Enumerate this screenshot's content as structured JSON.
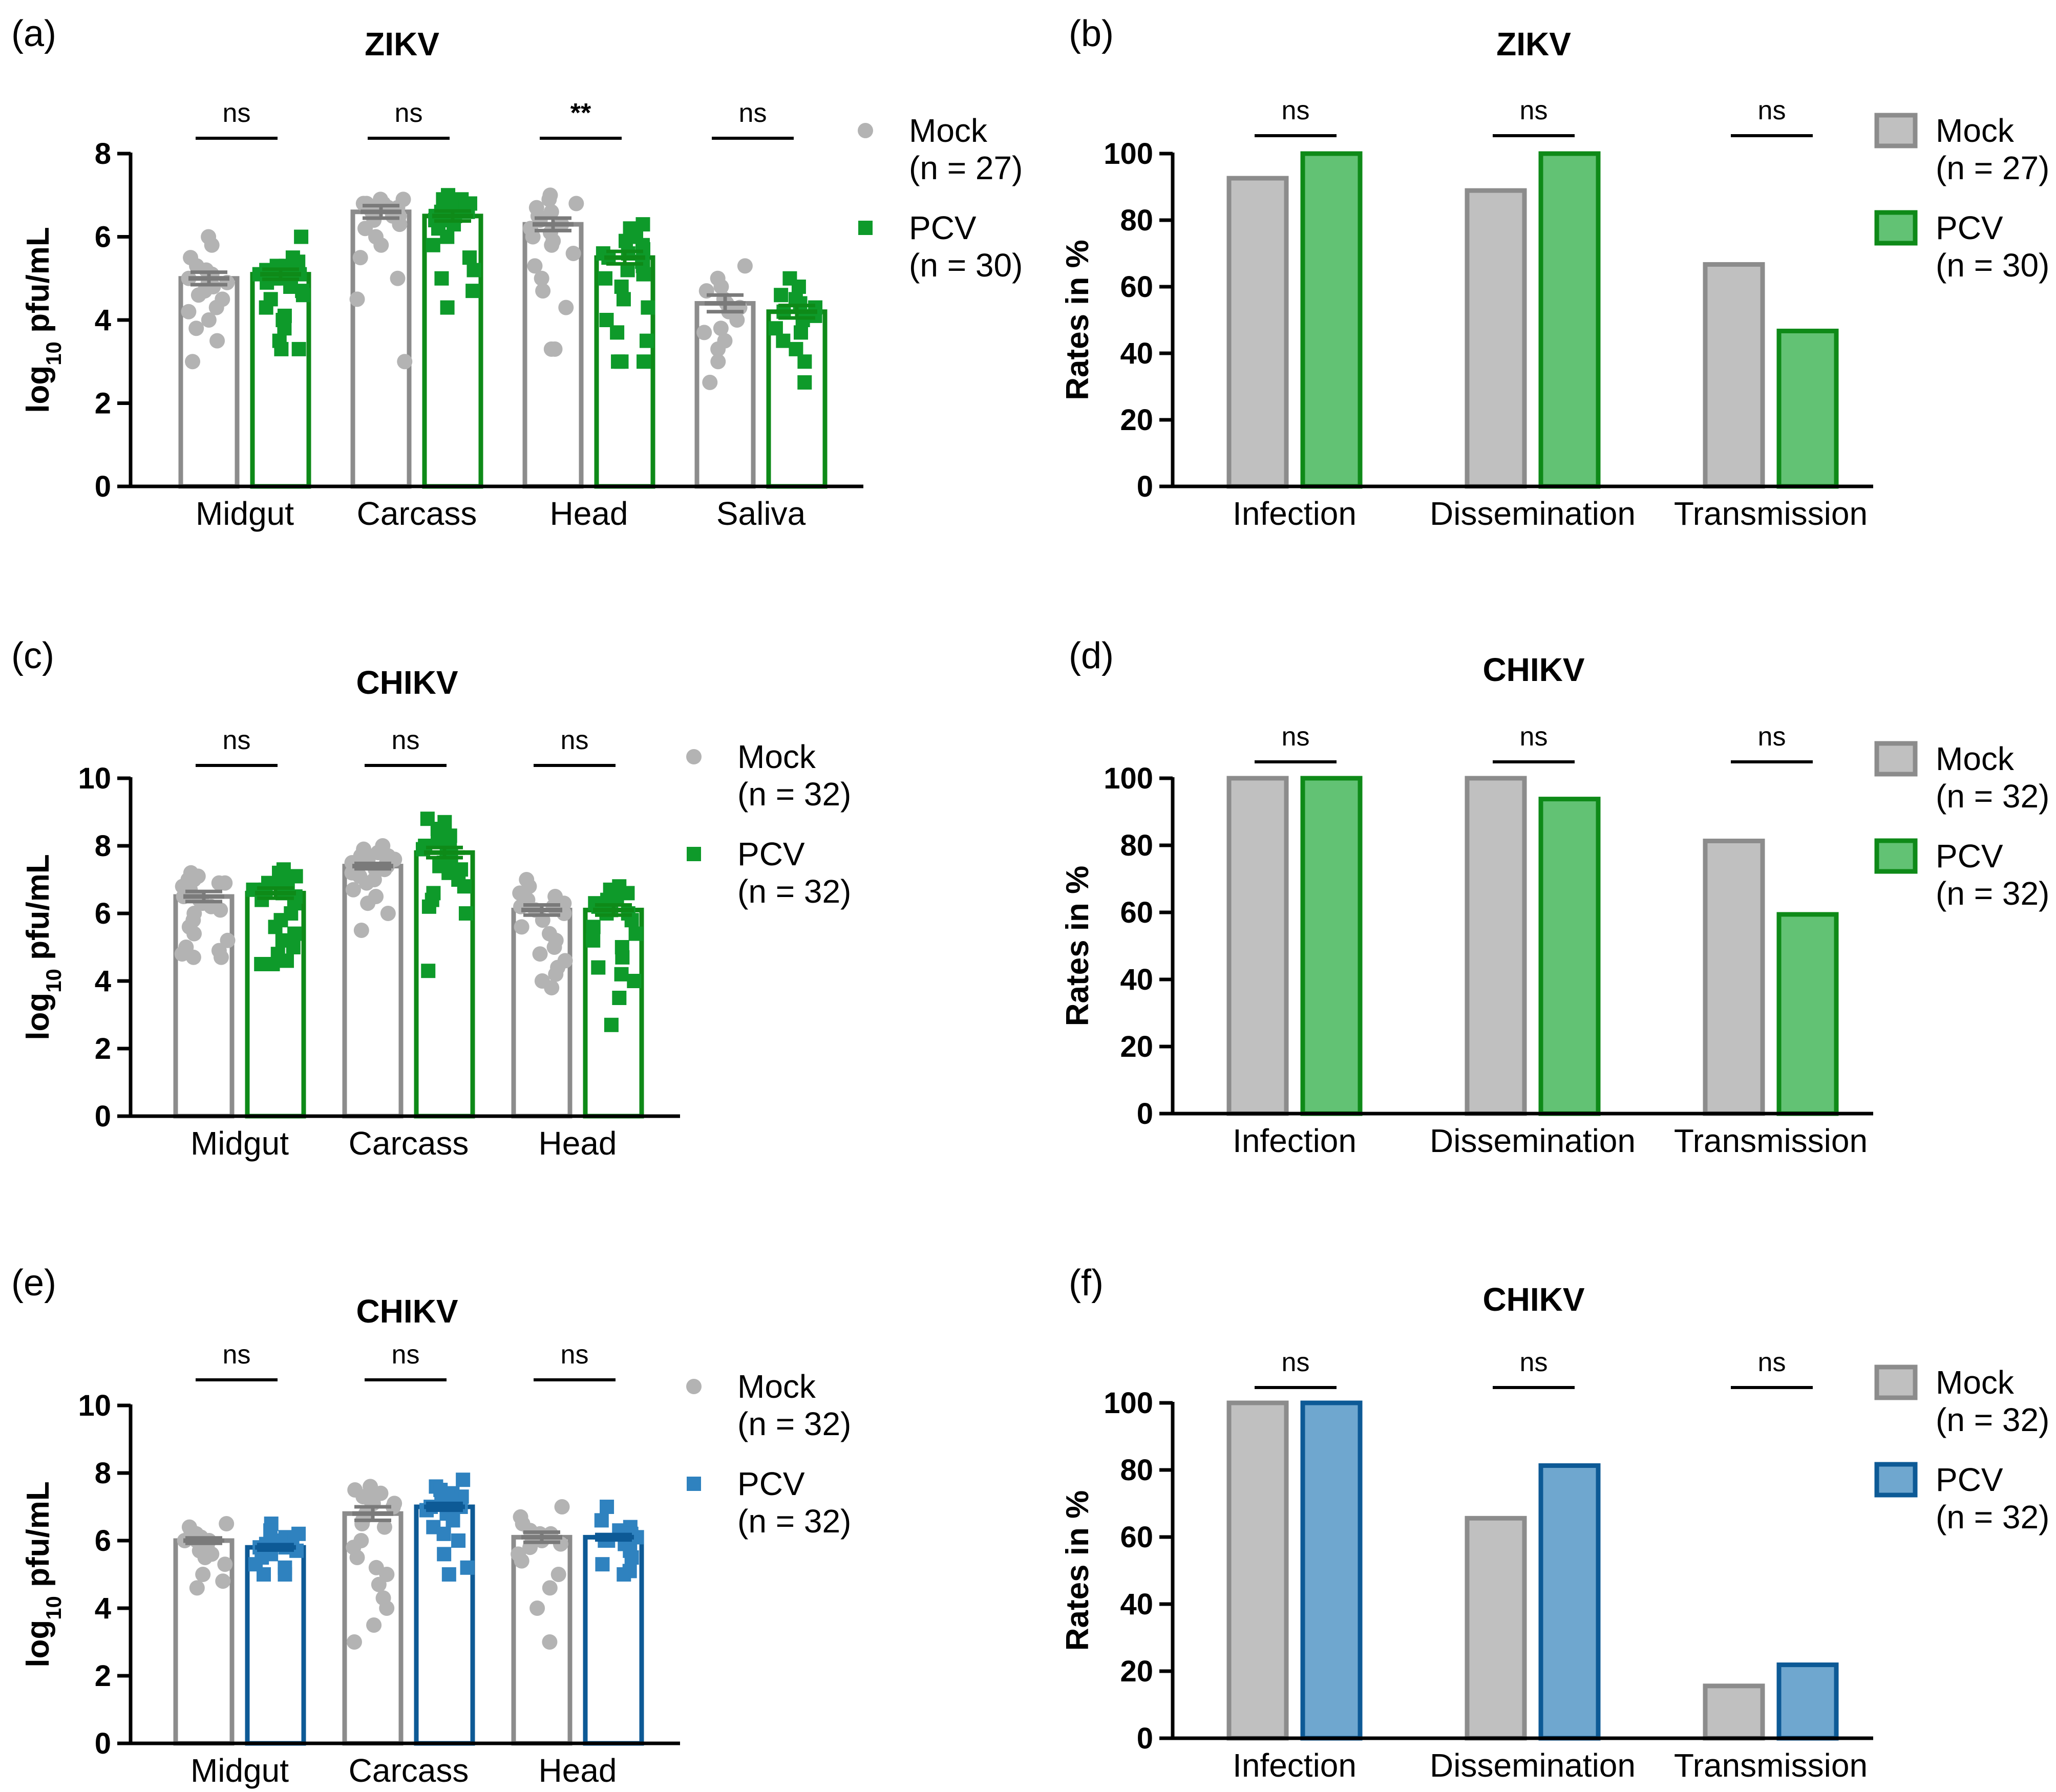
{
  "colors": {
    "mock_edge": "#8c8c8c",
    "mock_fill": "#c0c0c0",
    "mock_dot": "#b3b3b3",
    "green_edge": "#0e8a18",
    "green_fill": "#62c274",
    "green_dot": "#0e9a2a",
    "blue_edge": "#0d5a96",
    "blue_fill": "#6fa7cf",
    "blue_dot": "#2f82bf"
  },
  "chart_data": [
    {
      "id": "a",
      "type": "bar",
      "panel_label": "(a)",
      "title": "ZIKV",
      "ylabel": "log10 pfu/mL",
      "ylim": [
        0,
        8
      ],
      "yticks": [
        0,
        2,
        4,
        6,
        8
      ],
      "categories": [
        "Midgut",
        "Carcass",
        "Head",
        "Saliva"
      ],
      "significance": [
        "ns",
        "ns",
        "**",
        "ns"
      ],
      "series": [
        {
          "name": "Mock",
          "n_label": "(n = 27)",
          "values": [
            5.0,
            6.6,
            6.3,
            4.4
          ],
          "sem": [
            0.15,
            0.15,
            0.15,
            0.2
          ],
          "points": [
            [
              6.0,
              5.8,
              5.5,
              5.3,
              5.2,
              5.0,
              5.0,
              4.9,
              4.8,
              4.7,
              4.6,
              4.5,
              4.3,
              4.2,
              4.0,
              3.8,
              3.5,
              3.0,
              5.1,
              4.9
            ],
            [
              6.9,
              6.9,
              6.8,
              6.8,
              6.7,
              6.7,
              6.7,
              6.6,
              6.6,
              6.5,
              6.5,
              6.4,
              6.3,
              6.2,
              6.0,
              5.8,
              5.5,
              5.0,
              4.5,
              3.0,
              6.8,
              6.6
            ],
            [
              7.0,
              6.9,
              6.8,
              6.7,
              6.6,
              6.5,
              6.4,
              6.3,
              6.2,
              6.0,
              5.8,
              5.6,
              5.3,
              5.0,
              4.7,
              4.3,
              3.3,
              3.3,
              6.1,
              5.9
            ],
            [
              5.3,
              5.0,
              4.8,
              4.7,
              4.5,
              4.4,
              4.3,
              4.2,
              4.0,
              3.8,
              3.7,
              3.5,
              3.3,
              3.0,
              2.5
            ]
          ]
        },
        {
          "name": "PCV",
          "n_label": "(n = 30)",
          "values": [
            5.1,
            6.5,
            5.5,
            4.2
          ],
          "sem": [
            0.12,
            0.12,
            0.15,
            0.15
          ],
          "points": [
            [
              6.0,
              5.5,
              5.4,
              5.3,
              5.2,
              5.2,
              5.1,
              5.0,
              5.0,
              4.9,
              4.8,
              4.7,
              4.6,
              4.5,
              4.3,
              4.1,
              4.0,
              3.8,
              3.5,
              3.3,
              3.3,
              5.1,
              4.9,
              5.3
            ],
            [
              7.0,
              6.9,
              6.9,
              6.8,
              6.8,
              6.7,
              6.7,
              6.6,
              6.5,
              6.5,
              6.4,
              6.3,
              6.2,
              6.0,
              5.8,
              5.5,
              5.2,
              5.0,
              4.7,
              4.3,
              6.8,
              6.6,
              6.4
            ],
            [
              6.3,
              6.2,
              6.0,
              5.9,
              5.8,
              5.7,
              5.6,
              5.5,
              5.4,
              5.3,
              5.1,
              5.0,
              4.8,
              4.5,
              4.3,
              4.0,
              3.7,
              3.5,
              3.0,
              3.0,
              3.0,
              5.6,
              5.2
            ],
            [
              5.0,
              4.8,
              4.6,
              4.5,
              4.3,
              4.2,
              4.0,
              3.8,
              3.7,
              3.5,
              3.3,
              3.0,
              2.5,
              4.4,
              4.1
            ]
          ]
        }
      ]
    },
    {
      "id": "b",
      "type": "bar",
      "panel_label": "(b)",
      "title": "ZIKV",
      "ylabel": "Rates in %",
      "ylim": [
        0,
        100
      ],
      "yticks": [
        0,
        20,
        40,
        60,
        80,
        100
      ],
      "categories": [
        "Infection",
        "Dissemination",
        "Transmission"
      ],
      "significance": [
        "ns",
        "ns",
        "ns"
      ],
      "series": [
        {
          "name": "Mock",
          "n_label": "(n = 27)",
          "values": [
            92.6,
            88.9,
            66.7
          ]
        },
        {
          "name": "PCV",
          "n_label": "(n = 30)",
          "values": [
            100,
            100,
            46.7
          ]
        }
      ]
    },
    {
      "id": "c",
      "type": "bar",
      "panel_label": "(c)",
      "title": "CHIKV",
      "ylabel": "log10 pfu/mL",
      "ylim": [
        0,
        10
      ],
      "yticks": [
        0,
        2,
        4,
        6,
        8,
        10
      ],
      "categories": [
        "Midgut",
        "Carcass",
        "Head"
      ],
      "significance": [
        "ns",
        "ns",
        "ns"
      ],
      "series": [
        {
          "name": "Mock",
          "n_label": "(n = 32)",
          "values": [
            6.5,
            7.4,
            6.1
          ],
          "sem": [
            0.15,
            0.08,
            0.15
          ],
          "points": [
            [
              7.2,
              7.1,
              7.0,
              7.0,
              6.9,
              6.8,
              6.7,
              6.6,
              6.5,
              6.4,
              6.3,
              6.2,
              6.0,
              5.8,
              5.6,
              5.4,
              5.2,
              5.0,
              4.9,
              4.8,
              4.7,
              4.7,
              6.1,
              6.9
            ],
            [
              8.0,
              7.9,
              7.8,
              7.7,
              7.6,
              7.6,
              7.5,
              7.5,
              7.4,
              7.3,
              7.2,
              7.1,
              7.0,
              6.9,
              6.7,
              6.5,
              6.3,
              6.0,
              5.5,
              7.3,
              7.7
            ],
            [
              7.0,
              6.8,
              6.6,
              6.4,
              6.3,
              6.2,
              6.1,
              6.0,
              5.8,
              5.6,
              5.4,
              5.2,
              5.0,
              4.8,
              4.6,
              4.4,
              4.2,
              4.0,
              3.8,
              6.2,
              6.5
            ]
          ]
        },
        {
          "name": "PCV",
          "n_label": "(n = 32)",
          "values": [
            6.6,
            7.8,
            6.1
          ],
          "sem": [
            0.15,
            0.15,
            0.15
          ],
          "points": [
            [
              7.3,
              7.2,
              7.1,
              7.0,
              6.9,
              6.8,
              6.7,
              6.6,
              6.5,
              6.4,
              6.3,
              6.0,
              5.8,
              5.6,
              5.4,
              5.2,
              5.0,
              4.8,
              4.6,
              4.5,
              4.5,
              6.7,
              7.0
            ],
            [
              8.8,
              8.7,
              8.5,
              8.3,
              8.2,
              8.0,
              7.9,
              7.8,
              7.7,
              7.6,
              7.5,
              7.4,
              7.3,
              7.2,
              7.0,
              6.8,
              6.6,
              6.4,
              6.2,
              6.0,
              4.3,
              7.9
            ],
            [
              6.8,
              6.7,
              6.6,
              6.5,
              6.4,
              6.3,
              6.2,
              6.1,
              6.0,
              5.8,
              5.6,
              5.4,
              5.2,
              5.0,
              4.7,
              4.4,
              4.2,
              4.0,
              3.5,
              2.7,
              6.3,
              6.0
            ]
          ]
        }
      ]
    },
    {
      "id": "d",
      "type": "bar",
      "panel_label": "(d)",
      "title": "CHIKV",
      "ylabel": "Rates in %",
      "ylim": [
        0,
        100
      ],
      "yticks": [
        0,
        20,
        40,
        60,
        80,
        100
      ],
      "categories": [
        "Infection",
        "Dissemination",
        "Transmission"
      ],
      "significance": [
        "ns",
        "ns",
        "ns"
      ],
      "series": [
        {
          "name": "Mock",
          "n_label": "(n = 32)",
          "values": [
            100,
            100,
            81.3
          ]
        },
        {
          "name": "PCV",
          "n_label": "(n = 32)",
          "values": [
            100,
            93.8,
            59.4
          ]
        }
      ]
    },
    {
      "id": "e",
      "type": "bar",
      "panel_label": "(e)",
      "title": "CHIKV",
      "ylabel": "log10 pfu/mL",
      "ylim": [
        0,
        10
      ],
      "yticks": [
        0,
        2,
        4,
        6,
        8,
        10
      ],
      "categories": [
        "Midgut",
        "Carcass",
        "Head"
      ],
      "significance": [
        "ns",
        "ns",
        "ns"
      ],
      "series": [
        {
          "name": "Mock",
          "n_label": "(n = 32)",
          "values": [
            6.0,
            6.8,
            6.1
          ],
          "sem": [
            0.08,
            0.2,
            0.15
          ],
          "points": [
            [
              6.5,
              6.4,
              6.3,
              6.2,
              6.1,
              6.0,
              6.0,
              5.9,
              5.8,
              5.7,
              5.6,
              5.5,
              5.3,
              5.0,
              4.8,
              4.6,
              6.2,
              6.0
            ],
            [
              7.6,
              7.5,
              7.4,
              7.3,
              7.2,
              7.1,
              7.0,
              6.8,
              6.6,
              6.4,
              6.0,
              5.8,
              5.5,
              5.2,
              5.0,
              4.7,
              4.3,
              4.0,
              3.5,
              3.0,
              7.1,
              6.5
            ],
            [
              7.0,
              6.7,
              6.5,
              6.3,
              6.2,
              6.1,
              6.0,
              5.8,
              5.6,
              5.4,
              5.0,
              4.6,
              4.0,
              3.0,
              6.2,
              5.9
            ]
          ]
        },
        {
          "name": "PCV",
          "n_label": "(n = 32)",
          "values": [
            5.8,
            7.0,
            6.1
          ],
          "sem": [
            0.08,
            0.1,
            0.08
          ],
          "points": [
            [
              6.5,
              6.3,
              6.2,
              6.1,
              6.0,
              5.9,
              5.8,
              5.7,
              5.6,
              5.5,
              5.3,
              5.2,
              5.0,
              5.0,
              6.0,
              5.8
            ],
            [
              7.8,
              7.6,
              7.5,
              7.4,
              7.3,
              7.2,
              7.1,
              7.0,
              6.9,
              6.8,
              6.6,
              6.4,
              6.2,
              6.0,
              5.6,
              5.2,
              5.0,
              7.0,
              7.2
            ],
            [
              7.0,
              6.6,
              6.4,
              6.3,
              6.2,
              6.1,
              6.0,
              5.9,
              5.7,
              5.5,
              5.3,
              5.1,
              5.0,
              6.1,
              6.0
            ]
          ]
        }
      ]
    },
    {
      "id": "f",
      "type": "bar",
      "panel_label": "(f)",
      "title": "CHIKV",
      "ylabel": "Rates in %",
      "ylim": [
        0,
        100
      ],
      "yticks": [
        0,
        20,
        40,
        60,
        80,
        100
      ],
      "categories": [
        "Infection",
        "Dissemination",
        "Transmission"
      ],
      "significance": [
        "ns",
        "ns",
        "ns"
      ],
      "series": [
        {
          "name": "Mock",
          "n_label": "(n = 32)",
          "values": [
            100,
            65.6,
            15.6
          ]
        },
        {
          "name": "PCV",
          "n_label": "(n = 32)",
          "values": [
            100,
            81.3,
            21.9
          ]
        }
      ]
    }
  ]
}
